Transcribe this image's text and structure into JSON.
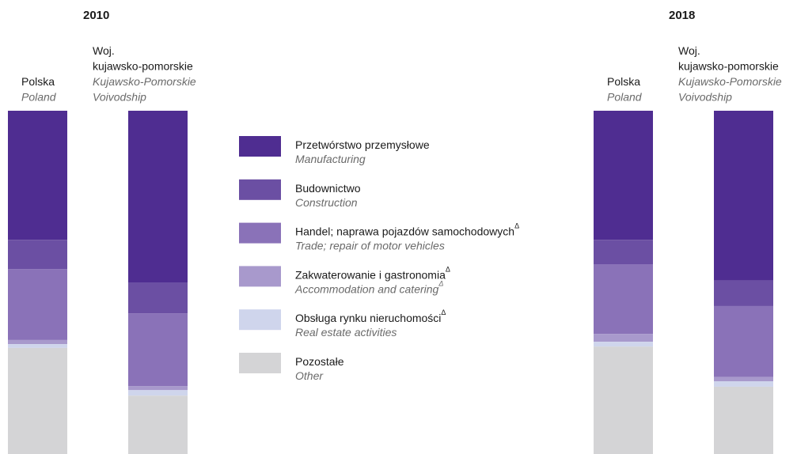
{
  "chart_data": {
    "type": "bar",
    "stacked": true,
    "ylim": [
      0,
      100
    ],
    "series": [
      {
        "name": "Przetwórstwo przemysłowe",
        "name_en": "Manufacturing",
        "color": "#4f2d91"
      },
      {
        "name": "Budownictwo",
        "name_en": "Construction",
        "color": "#6b4fa3"
      },
      {
        "name": "Handel; naprawa pojazdów samochodowych",
        "sup": "Δ",
        "name_en": "Trade; repair of motor vehicles",
        "color": "#8a72b8"
      },
      {
        "name": "Zakwaterowanie i gastronomia",
        "sup": "Δ",
        "name_en": "Accommodation and catering",
        "sup_en": "Δ",
        "color": "#a899cc"
      },
      {
        "name": "Obsługa rynku nieruchomości",
        "sup": "Δ",
        "name_en": "Real estate activities",
        "color": "#cfd5ec"
      },
      {
        "name": "Pozostałe",
        "name_en": "Other",
        "color": "#d4d4d6"
      }
    ],
    "panels": [
      {
        "title": "2010",
        "categories": [
          {
            "label": [
              "Polska"
            ],
            "label_en": [
              "Poland"
            ]
          },
          {
            "label": [
              "Woj.",
              "kujawsko-pomorskie"
            ],
            "label_en": [
              "Kujawsko-Pomorskie",
              "Voivodship"
            ]
          }
        ],
        "values": [
          [
            37.6,
            50.0
          ],
          [
            8.5,
            9.0
          ],
          [
            20.7,
            21.2
          ],
          [
            1.2,
            1.2
          ],
          [
            1.1,
            1.6
          ],
          [
            30.9,
            17.0
          ]
        ]
      },
      {
        "title": "2018",
        "categories": [
          {
            "label": [
              "Polska"
            ],
            "label_en": [
              "Poland"
            ]
          },
          {
            "label": [
              "Woj.",
              "kujawsko-pomorskie"
            ],
            "label_en": [
              "Kujawsko-Pomorskie",
              "Voivodship"
            ]
          }
        ],
        "values": [
          [
            37.6,
            49.5
          ],
          [
            7.1,
            7.4
          ],
          [
            20.3,
            20.7
          ],
          [
            2.3,
            1.2
          ],
          [
            1.4,
            1.6
          ],
          [
            31.3,
            19.6
          ]
        ]
      }
    ]
  }
}
